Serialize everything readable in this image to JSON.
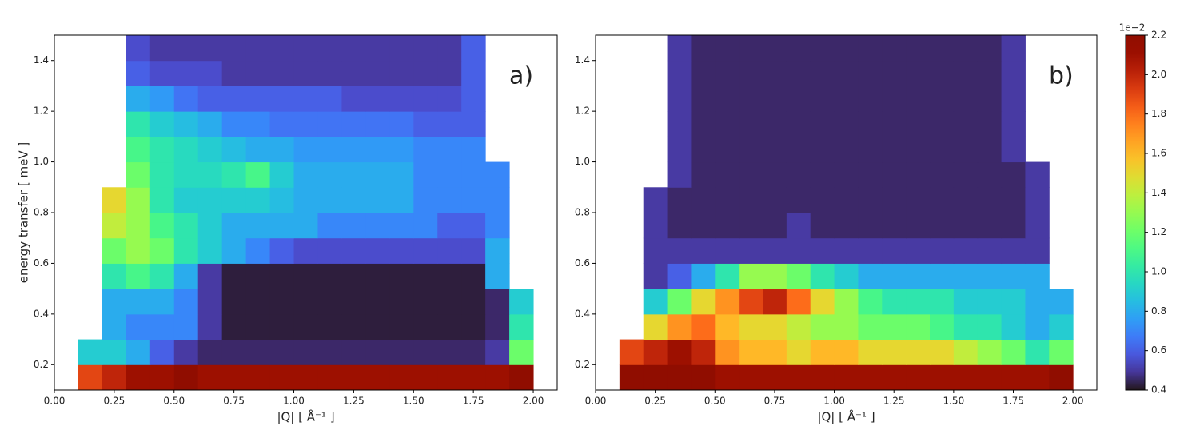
{
  "chart_data": [
    {
      "type": "heatmap",
      "panel_label": "a)",
      "xlabel": "|Q| [ Å⁻¹ ]",
      "ylabel": "energy transfer [ meV ]",
      "colormap": "turbo",
      "clim": [
        0.4,
        2.2
      ],
      "xlim": [
        0,
        2.1
      ],
      "ylim": [
        0.1,
        1.5
      ],
      "xticks": [
        {
          "value": 0,
          "label": "0.00"
        },
        {
          "value": 0.25,
          "label": "0.25"
        },
        {
          "value": 0.5,
          "label": "0.50"
        },
        {
          "value": 0.75,
          "label": "0.75"
        },
        {
          "value": 1,
          "label": "1.00"
        },
        {
          "value": 1.25,
          "label": "1.25"
        },
        {
          "value": 1.5,
          "label": "1.50"
        },
        {
          "value": 1.75,
          "label": "1.75"
        },
        {
          "value": 2,
          "label": "2.00"
        }
      ],
      "yticks": [
        0.2,
        0.4,
        0.6,
        0.8,
        {
          "value": 1,
          "label": "1.0"
        },
        1.2,
        1.4
      ],
      "xbins": [
        0.1,
        0.2,
        0.3,
        0.4,
        0.5,
        0.6,
        0.7,
        0.8,
        0.9,
        1.0,
        1.1,
        1.2,
        1.3,
        1.4,
        1.5,
        1.6,
        1.7,
        1.8,
        1.9,
        2.0,
        2.1
      ],
      "ybins": [
        0.1,
        0.2,
        0.3,
        0.4,
        0.5,
        0.6,
        0.7,
        0.8,
        0.9,
        1.0,
        1.1,
        1.2,
        1.3,
        1.4,
        1.5
      ],
      "z": [
        [
          1.9,
          2.0,
          2.1,
          2.1,
          2.2,
          2.1,
          2.1,
          2.1,
          2.1,
          2.1,
          2.1,
          2.1,
          2.1,
          2.1,
          2.1,
          2.1,
          2.1,
          2.1,
          2.2,
          null
        ],
        [
          0.9,
          0.9,
          0.8,
          0.6,
          0.5,
          0.45,
          0.45,
          0.45,
          0.45,
          0.45,
          0.45,
          0.45,
          0.45,
          0.45,
          0.45,
          0.45,
          0.45,
          0.5,
          1.2,
          null
        ],
        [
          null,
          0.8,
          0.7,
          0.7,
          0.7,
          0.5,
          0.42,
          0.42,
          0.42,
          0.42,
          0.42,
          0.42,
          0.42,
          0.42,
          0.42,
          0.42,
          0.42,
          0.45,
          1.0,
          null
        ],
        [
          null,
          0.8,
          0.8,
          0.8,
          0.7,
          0.5,
          0.42,
          0.42,
          0.42,
          0.42,
          0.42,
          0.42,
          0.42,
          0.42,
          0.42,
          0.42,
          0.42,
          0.45,
          0.9,
          null
        ],
        [
          null,
          1.0,
          1.1,
          1.0,
          0.8,
          0.5,
          0.42,
          0.42,
          0.42,
          0.42,
          0.42,
          0.42,
          0.42,
          0.42,
          0.42,
          0.42,
          0.42,
          0.8,
          null,
          null
        ],
        [
          null,
          1.2,
          1.3,
          1.2,
          1.0,
          0.9,
          0.8,
          0.7,
          0.6,
          0.55,
          0.55,
          0.55,
          0.55,
          0.55,
          0.55,
          0.55,
          0.55,
          0.8,
          null,
          null
        ],
        [
          null,
          1.4,
          1.3,
          1.1,
          1.0,
          0.9,
          0.8,
          0.8,
          0.8,
          0.8,
          0.7,
          0.7,
          0.7,
          0.7,
          0.7,
          0.6,
          0.6,
          0.7,
          null,
          null
        ],
        [
          null,
          1.5,
          1.3,
          1.0,
          0.9,
          0.9,
          0.9,
          0.9,
          0.85,
          0.8,
          0.8,
          0.8,
          0.8,
          0.8,
          0.7,
          0.7,
          0.7,
          0.7,
          null,
          null
        ],
        [
          null,
          null,
          1.2,
          1.0,
          0.95,
          0.95,
          1.0,
          1.1,
          0.9,
          0.8,
          0.8,
          0.8,
          0.8,
          0.8,
          0.7,
          0.7,
          0.7,
          0.7,
          null,
          null
        ],
        [
          null,
          null,
          1.1,
          1.0,
          0.95,
          0.9,
          0.85,
          0.8,
          0.8,
          0.75,
          0.75,
          0.75,
          0.75,
          0.75,
          0.7,
          0.7,
          0.7,
          null,
          null,
          null
        ],
        [
          null,
          null,
          1.0,
          0.9,
          0.85,
          0.8,
          0.7,
          0.7,
          0.65,
          0.65,
          0.65,
          0.65,
          0.65,
          0.65,
          0.6,
          0.6,
          0.6,
          null,
          null,
          null
        ],
        [
          null,
          null,
          0.8,
          0.75,
          0.65,
          0.6,
          0.6,
          0.6,
          0.6,
          0.6,
          0.6,
          0.55,
          0.55,
          0.55,
          0.55,
          0.55,
          0.6,
          null,
          null,
          null
        ],
        [
          null,
          null,
          0.6,
          0.55,
          0.55,
          0.55,
          0.5,
          0.5,
          0.5,
          0.5,
          0.5,
          0.5,
          0.5,
          0.5,
          0.5,
          0.5,
          0.6,
          null,
          null,
          null
        ],
        [
          null,
          null,
          0.55,
          0.5,
          0.5,
          0.5,
          0.5,
          0.5,
          0.5,
          0.5,
          0.5,
          0.5,
          0.5,
          0.5,
          0.5,
          0.5,
          0.6,
          null,
          null,
          null
        ]
      ]
    },
    {
      "type": "heatmap",
      "panel_label": "b)",
      "xlabel": "|Q| [ Å⁻¹ ]",
      "colormap": "turbo",
      "clim": [
        0.4,
        2.2
      ],
      "xlim": [
        0,
        2.1
      ],
      "ylim": [
        0.1,
        1.5
      ],
      "xticks": [
        {
          "value": 0,
          "label": "0.00"
        },
        {
          "value": 0.25,
          "label": "0.25"
        },
        {
          "value": 0.5,
          "label": "0.50"
        },
        {
          "value": 0.75,
          "label": "0.75"
        },
        {
          "value": 1,
          "label": "1.00"
        },
        {
          "value": 1.25,
          "label": "1.25"
        },
        {
          "value": 1.5,
          "label": "1.50"
        },
        {
          "value": 1.75,
          "label": "1.75"
        },
        {
          "value": 2,
          "label": "2.00"
        }
      ],
      "yticks": [
        0.2,
        0.4,
        0.6,
        0.8,
        {
          "value": 1,
          "label": "1.0"
        },
        1.2,
        1.4
      ],
      "xbins": [
        0.1,
        0.2,
        0.3,
        0.4,
        0.5,
        0.6,
        0.7,
        0.8,
        0.9,
        1.0,
        1.1,
        1.2,
        1.3,
        1.4,
        1.5,
        1.6,
        1.7,
        1.8,
        1.9,
        2.0,
        2.1
      ],
      "ybins": [
        0.1,
        0.2,
        0.3,
        0.4,
        0.5,
        0.6,
        0.7,
        0.8,
        0.9,
        1.0,
        1.1,
        1.2,
        1.3,
        1.4,
        1.5
      ],
      "z": [
        [
          2.2,
          2.2,
          2.2,
          2.2,
          2.1,
          2.1,
          2.1,
          2.1,
          2.1,
          2.1,
          2.1,
          2.1,
          2.1,
          2.1,
          2.1,
          2.1,
          2.1,
          2.1,
          2.2,
          null
        ],
        [
          1.9,
          2.0,
          2.1,
          2.0,
          1.7,
          1.6,
          1.6,
          1.5,
          1.6,
          1.6,
          1.5,
          1.5,
          1.5,
          1.5,
          1.4,
          1.3,
          1.2,
          1.0,
          1.2,
          null
        ],
        [
          null,
          1.5,
          1.7,
          1.8,
          1.6,
          1.5,
          1.5,
          1.4,
          1.3,
          1.3,
          1.2,
          1.2,
          1.2,
          1.1,
          1.0,
          1.0,
          0.9,
          0.8,
          0.9,
          null
        ],
        [
          null,
          0.9,
          1.2,
          1.5,
          1.7,
          1.9,
          2.0,
          1.8,
          1.5,
          1.3,
          1.1,
          1.0,
          1.0,
          1.0,
          0.9,
          0.9,
          0.9,
          0.8,
          0.8,
          null
        ],
        [
          null,
          0.5,
          0.6,
          0.8,
          1.0,
          1.3,
          1.3,
          1.2,
          1.0,
          0.9,
          0.8,
          0.8,
          0.8,
          0.8,
          0.8,
          0.8,
          0.8,
          0.8,
          null,
          null
        ],
        [
          null,
          0.5,
          0.5,
          0.5,
          0.5,
          0.5,
          0.5,
          0.5,
          0.5,
          0.5,
          0.5,
          0.5,
          0.5,
          0.5,
          0.5,
          0.5,
          0.5,
          0.5,
          null,
          null
        ],
        [
          null,
          0.5,
          0.45,
          0.45,
          0.45,
          0.45,
          0.45,
          0.5,
          0.45,
          0.45,
          0.45,
          0.45,
          0.45,
          0.45,
          0.45,
          0.45,
          0.45,
          0.5,
          null,
          null
        ],
        [
          null,
          0.5,
          0.45,
          0.45,
          0.45,
          0.45,
          0.45,
          0.45,
          0.45,
          0.45,
          0.45,
          0.45,
          0.45,
          0.45,
          0.45,
          0.45,
          0.45,
          0.5,
          null,
          null
        ],
        [
          null,
          null,
          0.5,
          0.45,
          0.45,
          0.45,
          0.45,
          0.45,
          0.45,
          0.45,
          0.45,
          0.45,
          0.45,
          0.45,
          0.45,
          0.45,
          0.45,
          0.5,
          null,
          null
        ],
        [
          null,
          null,
          0.5,
          0.45,
          0.45,
          0.45,
          0.45,
          0.45,
          0.45,
          0.45,
          0.45,
          0.45,
          0.45,
          0.45,
          0.45,
          0.45,
          0.5,
          null,
          null,
          null
        ],
        [
          null,
          null,
          0.5,
          0.45,
          0.45,
          0.45,
          0.45,
          0.45,
          0.45,
          0.45,
          0.45,
          0.45,
          0.45,
          0.45,
          0.45,
          0.45,
          0.5,
          null,
          null,
          null
        ],
        [
          null,
          null,
          0.5,
          0.45,
          0.45,
          0.45,
          0.45,
          0.45,
          0.45,
          0.45,
          0.45,
          0.45,
          0.45,
          0.45,
          0.45,
          0.45,
          0.5,
          null,
          null,
          null
        ],
        [
          null,
          null,
          0.5,
          0.45,
          0.45,
          0.45,
          0.45,
          0.45,
          0.45,
          0.45,
          0.45,
          0.45,
          0.45,
          0.45,
          0.45,
          0.45,
          0.5,
          null,
          null,
          null
        ],
        [
          null,
          null,
          0.5,
          0.45,
          0.45,
          0.45,
          0.45,
          0.45,
          0.45,
          0.45,
          0.45,
          0.45,
          0.45,
          0.45,
          0.45,
          0.45,
          0.5,
          null,
          null,
          null
        ]
      ],
      "colorbar": {
        "offset_label": "1e−2",
        "ticks": [
          0.4,
          0.6,
          0.8,
          {
            "value": 1,
            "label": "1.0"
          },
          1.2,
          1.4,
          1.6,
          1.8,
          {
            "value": 2,
            "label": "2.0"
          },
          2.2
        ]
      }
    }
  ]
}
